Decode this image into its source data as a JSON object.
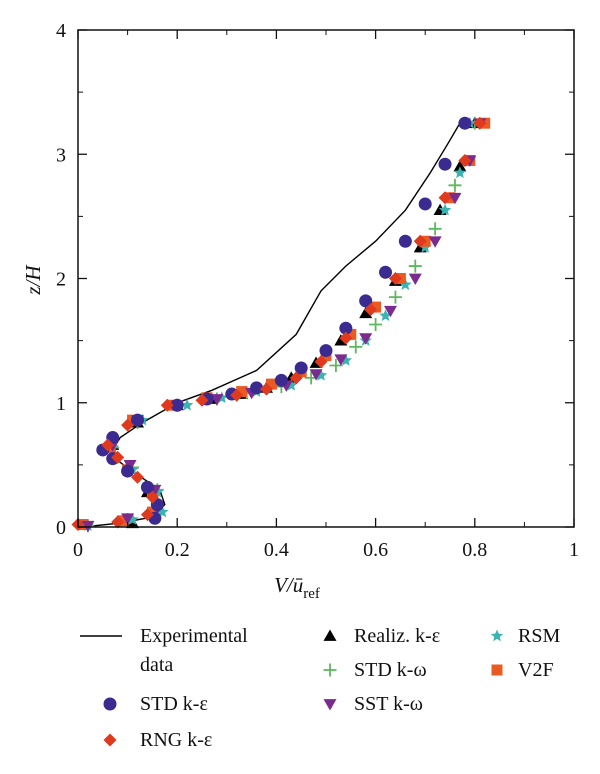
{
  "chart_data": {
    "type": "scatter",
    "xlabel": "V/ū",
    "xlabel_sub": "ref",
    "ylabel": "z/H",
    "xlim": [
      0,
      1
    ],
    "ylim": [
      0,
      4
    ],
    "x_ticks": [
      "0",
      "0.2",
      "0.4",
      "0.6",
      "0.8",
      "1"
    ],
    "y_ticks": [
      "0",
      "1",
      "2",
      "3",
      "4"
    ],
    "grid": false,
    "legend_position": "below",
    "series": [
      {
        "name": "Experimental data",
        "marker": "line",
        "color": "#000000",
        "points": [
          [
            0.01,
            0.0
          ],
          [
            0.08,
            0.03
          ],
          [
            0.15,
            0.08
          ],
          [
            0.175,
            0.18
          ],
          [
            0.165,
            0.3
          ],
          [
            0.12,
            0.42
          ],
          [
            0.085,
            0.52
          ],
          [
            0.07,
            0.62
          ],
          [
            0.085,
            0.72
          ],
          [
            0.13,
            0.84
          ],
          [
            0.2,
            1.0
          ],
          [
            0.27,
            1.1
          ],
          [
            0.36,
            1.26
          ],
          [
            0.44,
            1.55
          ],
          [
            0.49,
            1.9
          ],
          [
            0.54,
            2.1
          ],
          [
            0.6,
            2.3
          ],
          [
            0.66,
            2.55
          ],
          [
            0.71,
            2.85
          ],
          [
            0.745,
            3.08
          ],
          [
            0.77,
            3.25
          ]
        ]
      },
      {
        "name": "Realiz. k-ε",
        "marker": "triangle",
        "color": "#000000",
        "points": [
          [
            0.11,
            0.03
          ],
          [
            0.15,
            0.11
          ],
          [
            0.14,
            0.28
          ],
          [
            0.1,
            0.48
          ],
          [
            0.07,
            0.66
          ],
          [
            0.12,
            0.84
          ],
          [
            0.2,
            0.98
          ],
          [
            0.27,
            1.03
          ],
          [
            0.33,
            1.07
          ],
          [
            0.38,
            1.12
          ],
          [
            0.43,
            1.2
          ],
          [
            0.48,
            1.32
          ],
          [
            0.53,
            1.5
          ],
          [
            0.58,
            1.72
          ],
          [
            0.64,
            1.98
          ],
          [
            0.69,
            2.25
          ],
          [
            0.73,
            2.55
          ],
          [
            0.77,
            2.9
          ],
          [
            0.8,
            3.25
          ]
        ]
      },
      {
        "name": "STD k-ω",
        "marker": "plus",
        "color": "#5cb85c",
        "points": [
          [
            0.02,
            0.01
          ],
          [
            0.1,
            0.06
          ],
          [
            0.16,
            0.14
          ],
          [
            0.16,
            0.3
          ],
          [
            0.11,
            0.48
          ],
          [
            0.07,
            0.64
          ],
          [
            0.12,
            0.84
          ],
          [
            0.2,
            0.98
          ],
          [
            0.28,
            1.03
          ],
          [
            0.34,
            1.08
          ],
          [
            0.41,
            1.13
          ],
          [
            0.47,
            1.2
          ],
          [
            0.52,
            1.3
          ],
          [
            0.56,
            1.45
          ],
          [
            0.6,
            1.63
          ],
          [
            0.64,
            1.85
          ],
          [
            0.68,
            2.1
          ],
          [
            0.72,
            2.4
          ],
          [
            0.76,
            2.75
          ],
          [
            0.8,
            3.25
          ]
        ]
      },
      {
        "name": "RSM",
        "marker": "star",
        "color": "#3bb3b0",
        "points": [
          [
            0.02,
            0.01
          ],
          [
            0.11,
            0.06
          ],
          [
            0.17,
            0.12
          ],
          [
            0.16,
            0.28
          ],
          [
            0.11,
            0.46
          ],
          [
            0.07,
            0.64
          ],
          [
            0.13,
            0.86
          ],
          [
            0.22,
            0.98
          ],
          [
            0.29,
            1.04
          ],
          [
            0.36,
            1.09
          ],
          [
            0.43,
            1.14
          ],
          [
            0.49,
            1.22
          ],
          [
            0.54,
            1.34
          ],
          [
            0.58,
            1.5
          ],
          [
            0.62,
            1.7
          ],
          [
            0.66,
            1.95
          ],
          [
            0.7,
            2.25
          ],
          [
            0.74,
            2.55
          ],
          [
            0.77,
            2.85
          ],
          [
            0.79,
            3.25
          ]
        ]
      },
      {
        "name": "V2F",
        "marker": "square",
        "color": "#ea5b24",
        "points": [
          [
            0.01,
            0.02
          ],
          [
            0.09,
            0.05
          ],
          [
            0.15,
            0.12
          ],
          [
            0.15,
            0.28
          ],
          [
            0.1,
            0.46
          ],
          [
            0.065,
            0.64
          ],
          [
            0.11,
            0.86
          ],
          [
            0.19,
            0.98
          ],
          [
            0.26,
            1.04
          ],
          [
            0.33,
            1.09
          ],
          [
            0.39,
            1.15
          ],
          [
            0.45,
            1.25
          ],
          [
            0.5,
            1.38
          ],
          [
            0.55,
            1.55
          ],
          [
            0.6,
            1.77
          ],
          [
            0.65,
            2.0
          ],
          [
            0.7,
            2.3
          ],
          [
            0.75,
            2.65
          ],
          [
            0.79,
            2.95
          ],
          [
            0.82,
            3.25
          ]
        ]
      },
      {
        "name": "SST k-ω",
        "marker": "triangle-down",
        "color": "#7b2a8e",
        "points": [
          [
            0.02,
            0.01
          ],
          [
            0.1,
            0.07
          ],
          [
            0.16,
            0.15
          ],
          [
            0.155,
            0.3
          ],
          [
            0.105,
            0.5
          ],
          [
            0.07,
            0.66
          ],
          [
            0.12,
            0.86
          ],
          [
            0.2,
            0.98
          ],
          [
            0.28,
            1.03
          ],
          [
            0.35,
            1.08
          ],
          [
            0.42,
            1.14
          ],
          [
            0.48,
            1.23
          ],
          [
            0.53,
            1.35
          ],
          [
            0.58,
            1.52
          ],
          [
            0.63,
            1.74
          ],
          [
            0.68,
            2.0
          ],
          [
            0.72,
            2.3
          ],
          [
            0.76,
            2.65
          ],
          [
            0.79,
            2.95
          ],
          [
            0.81,
            3.25
          ]
        ]
      },
      {
        "name": "STD k-ε",
        "marker": "circle",
        "color": "#3b2a8f",
        "points": [
          [
            0.155,
            0.07
          ],
          [
            0.16,
            0.18
          ],
          [
            0.14,
            0.32
          ],
          [
            0.1,
            0.45
          ],
          [
            0.07,
            0.55
          ],
          [
            0.05,
            0.62
          ],
          [
            0.07,
            0.72
          ],
          [
            0.12,
            0.86
          ],
          [
            0.2,
            0.98
          ],
          [
            0.26,
            1.03
          ],
          [
            0.31,
            1.07
          ],
          [
            0.36,
            1.12
          ],
          [
            0.41,
            1.18
          ],
          [
            0.45,
            1.28
          ],
          [
            0.5,
            1.42
          ],
          [
            0.54,
            1.6
          ],
          [
            0.58,
            1.82
          ],
          [
            0.62,
            2.05
          ],
          [
            0.66,
            2.3
          ],
          [
            0.7,
            2.6
          ],
          [
            0.74,
            2.92
          ],
          [
            0.78,
            3.25
          ]
        ]
      },
      {
        "name": "RNG k-ε",
        "marker": "diamond",
        "color": "#e03a1e",
        "points": [
          [
            0.0,
            0.02
          ],
          [
            0.08,
            0.04
          ],
          [
            0.14,
            0.1
          ],
          [
            0.15,
            0.24
          ],
          [
            0.12,
            0.4
          ],
          [
            0.08,
            0.56
          ],
          [
            0.06,
            0.66
          ],
          [
            0.1,
            0.82
          ],
          [
            0.18,
            0.98
          ],
          [
            0.25,
            1.02
          ],
          [
            0.32,
            1.06
          ],
          [
            0.38,
            1.11
          ],
          [
            0.44,
            1.2
          ],
          [
            0.49,
            1.33
          ],
          [
            0.54,
            1.52
          ],
          [
            0.59,
            1.75
          ],
          [
            0.64,
            2.0
          ],
          [
            0.69,
            2.3
          ],
          [
            0.74,
            2.65
          ],
          [
            0.78,
            2.95
          ],
          [
            0.81,
            3.25
          ]
        ]
      }
    ]
  },
  "legend": {
    "items": [
      {
        "series": "Experimental data",
        "lines": [
          "Experimental",
          "data"
        ],
        "marker": "line",
        "color": "#000000"
      },
      {
        "series": "Realiz. k-ε",
        "lines": [
          "Realiz. k-ε"
        ],
        "marker": "triangle",
        "color": "#000000"
      },
      {
        "series": "RSM",
        "lines": [
          "RSM"
        ],
        "marker": "star",
        "color": "#3bb3b0"
      },
      {
        "series": "STD k-ω",
        "lines": [
          "STD k-ω"
        ],
        "marker": "plus",
        "color": "#5cb85c"
      },
      {
        "series": "V2F",
        "lines": [
          "V2F"
        ],
        "marker": "square",
        "color": "#ea5b24"
      },
      {
        "series": "STD k-ε",
        "lines": [
          "STD k-ε"
        ],
        "marker": "circle",
        "color": "#3b2a8f"
      },
      {
        "series": "SST k-ω",
        "lines": [
          "SST k-ω"
        ],
        "marker": "triangle-down",
        "color": "#7b2a8e"
      },
      {
        "series": "RNG k-ε",
        "lines": [
          "RNG k-ε"
        ],
        "marker": "diamond",
        "color": "#e03a1e"
      }
    ]
  }
}
